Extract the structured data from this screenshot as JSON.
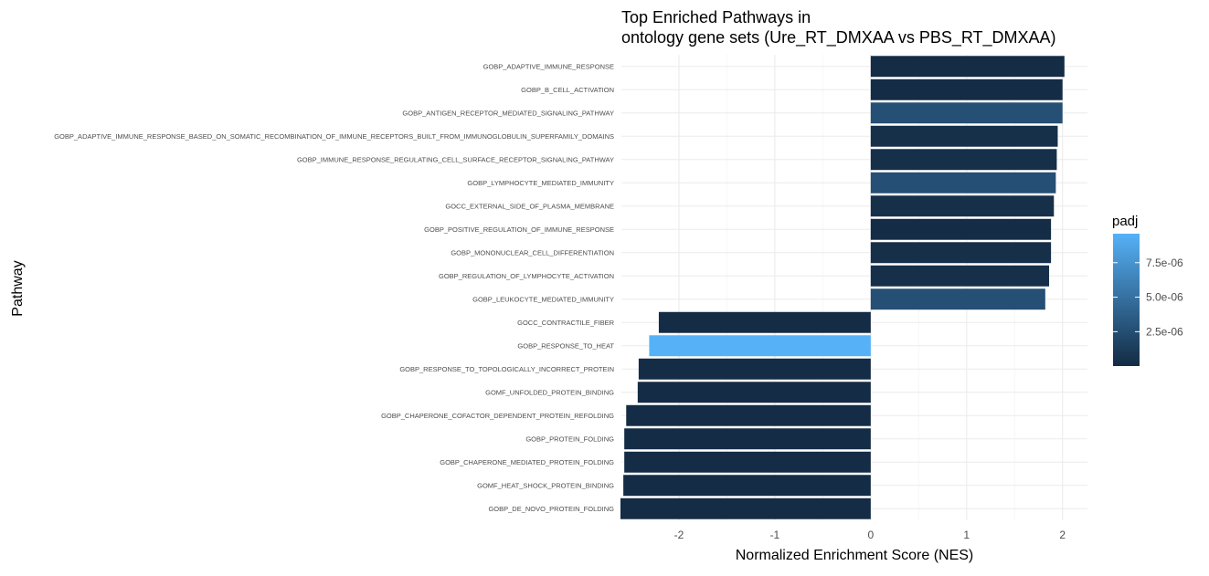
{
  "chart_data": {
    "type": "bar",
    "orientation": "horizontal",
    "title_lines": [
      "Top Enriched Pathways in",
      "ontology gene sets (Ure_RT_DMXAA vs PBS_RT_DMXAA)"
    ],
    "xlabel": "Normalized Enrichment Score (NES)",
    "ylabel": "Pathway",
    "xlim": [
      -2.6,
      2.26
    ],
    "x_ticks": [
      -2,
      -1,
      0,
      1,
      2
    ],
    "x_tick_labels": [
      "-2",
      "-1",
      "0",
      "1",
      "2"
    ],
    "grid": true,
    "legend": {
      "title": "padj",
      "placement": "right",
      "type": "colorbar",
      "range": [
        1e-08,
        9.6e-06
      ],
      "ticks": [
        2.5e-06,
        5e-06,
        7.5e-06
      ],
      "tick_labels": [
        "2.5e-06",
        "5.0e-06",
        "7.5e-06"
      ],
      "color_low": "#132b43",
      "color_high": "#56b1f7"
    },
    "categories": [
      "GOBP_ADAPTIVE_IMMUNE_RESPONSE",
      "GOBP_B_CELL_ACTIVATION",
      "GOBP_ANTIGEN_RECEPTOR_MEDIATED_SIGNALING_PATHWAY",
      "GOBP_ADAPTIVE_IMMUNE_RESPONSE_BASED_ON_SOMATIC_RECOMBINATION_OF_IMMUNE_RECEPTORS_BUILT_FROM_IMMUNOGLOBULIN_SUPERFAMILY_DOMAINS",
      "GOBP_IMMUNE_RESPONSE_REGULATING_CELL_SURFACE_RECEPTOR_SIGNALING_PATHWAY",
      "GOBP_LYMPHOCYTE_MEDIATED_IMMUNITY",
      "GOCC_EXTERNAL_SIDE_OF_PLASMA_MEMBRANE",
      "GOBP_POSITIVE_REGULATION_OF_IMMUNE_RESPONSE",
      "GOBP_MONONUCLEAR_CELL_DIFFERENTIATION",
      "GOBP_REGULATION_OF_LYMPHOCYTE_ACTIVATION",
      "GOBP_LEUKOCYTE_MEDIATED_IMMUNITY",
      "GOCC_CONTRACTILE_FIBER",
      "GOBP_RESPONSE_TO_HEAT",
      "GOBP_RESPONSE_TO_TOPOLOGICALLY_INCORRECT_PROTEIN",
      "GOMF_UNFOLDED_PROTEIN_BINDING",
      "GOBP_CHAPERONE_COFACTOR_DEPENDENT_PROTEIN_REFOLDING",
      "GOBP_PROTEIN_FOLDING",
      "GOBP_CHAPERONE_MEDIATED_PROTEIN_FOLDING",
      "GOMF_HEAT_SHOCK_PROTEIN_BINDING",
      "GOBP_DE_NOVO_PROTEIN_FOLDING"
    ],
    "values": [
      2.02,
      2.0,
      2.0,
      1.95,
      1.94,
      1.93,
      1.91,
      1.88,
      1.88,
      1.86,
      1.82,
      -2.21,
      -2.31,
      -2.42,
      -2.43,
      -2.55,
      -2.57,
      -2.57,
      -2.58,
      -2.61
    ],
    "padj": [
      1e-07,
      1e-07,
      2.6e-06,
      4e-07,
      4e-07,
      2.6e-06,
      4e-07,
      1e-07,
      4e-07,
      4e-07,
      2.6e-06,
      1e-07,
      9.6e-06,
      1e-07,
      1e-07,
      1e-07,
      1e-07,
      1e-07,
      1e-07,
      1e-07
    ]
  }
}
